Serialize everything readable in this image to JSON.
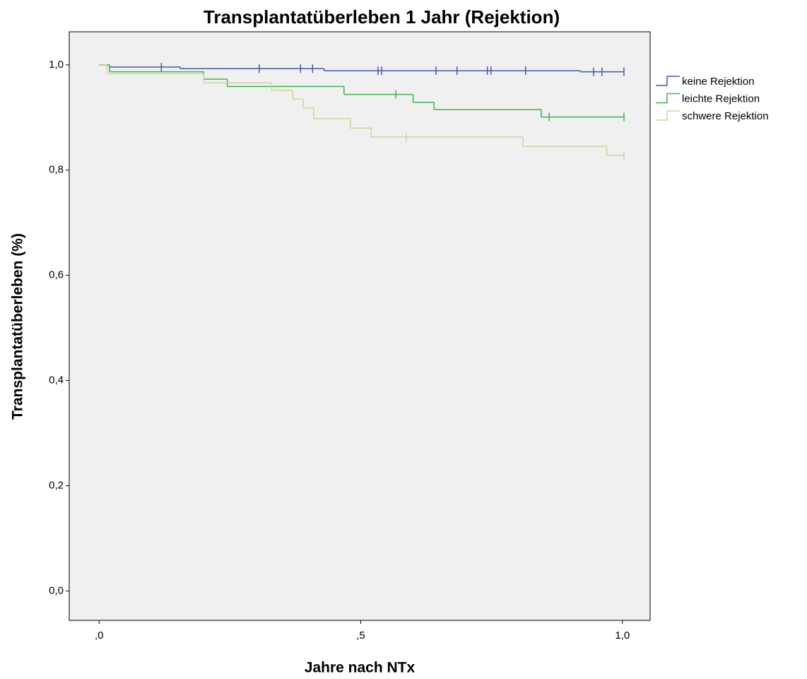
{
  "chart_data": {
    "type": "kaplan-meier",
    "title": "Transplantatüberleben 1 Jahr (Rejektion)",
    "x_label": "Jahre nach NTx",
    "y_label": "Transplantatüberleben (%)",
    "xlim": [
      -0.057,
      1.053
    ],
    "ylim": [
      -0.056,
      1.063
    ],
    "xticks": [
      {
        "value": 0,
        "label": ",0"
      },
      {
        "value": 0.5,
        "label": ",5"
      },
      {
        "value": 1,
        "label": "1,0"
      }
    ],
    "yticks": [
      {
        "value": 0,
        "label": "0,0"
      },
      {
        "value": 0.2,
        "label": "0,2"
      },
      {
        "value": 0.4,
        "label": "0,4"
      },
      {
        "value": 0.6,
        "label": "0,6"
      },
      {
        "value": 0.8,
        "label": "0,8"
      },
      {
        "value": 1,
        "label": "1,0"
      }
    ],
    "series": [
      {
        "name": "keine Rejektion",
        "color": "#3f5aae",
        "x": [
          0,
          0.02,
          0.155,
          0.43,
          0.92,
          1.003
        ],
        "values": [
          1.0,
          0.996,
          0.993,
          0.989,
          0.987,
          0.987
        ],
        "censored_x": [
          0.119,
          0.306,
          0.385,
          0.408,
          0.533,
          0.54,
          0.644,
          0.684,
          0.742,
          0.749,
          0.815,
          0.945,
          0.961,
          1.003
        ],
        "censored_y": [
          0.996,
          0.993,
          0.993,
          0.993,
          0.989,
          0.989,
          0.989,
          0.989,
          0.989,
          0.989,
          0.989,
          0.987,
          0.987,
          0.987
        ]
      },
      {
        "name": "leichte Rejektion",
        "color": "#3cb44a",
        "x": [
          0,
          0.02,
          0.2,
          0.245,
          0.468,
          0.6,
          0.64,
          0.845,
          1.003
        ],
        "values": [
          1.0,
          0.987,
          0.973,
          0.959,
          0.944,
          0.929,
          0.915,
          0.901,
          0.901
        ],
        "censored_x": [
          0.567,
          0.86,
          1.003
        ],
        "censored_y": [
          0.944,
          0.901,
          0.901
        ]
      },
      {
        "name": "schwere Rejektion",
        "color": "#d6d09c",
        "x": [
          0,
          0.015,
          0.2,
          0.33,
          0.37,
          0.39,
          0.41,
          0.48,
          0.52,
          0.81,
          0.97,
          1.003
        ],
        "values": [
          1.0,
          0.983,
          0.966,
          0.952,
          0.935,
          0.918,
          0.898,
          0.88,
          0.863,
          0.845,
          0.828,
          0.828
        ],
        "censored_x": [
          0.587,
          1.003
        ],
        "censored_y": [
          0.863,
          0.828
        ]
      }
    ]
  }
}
